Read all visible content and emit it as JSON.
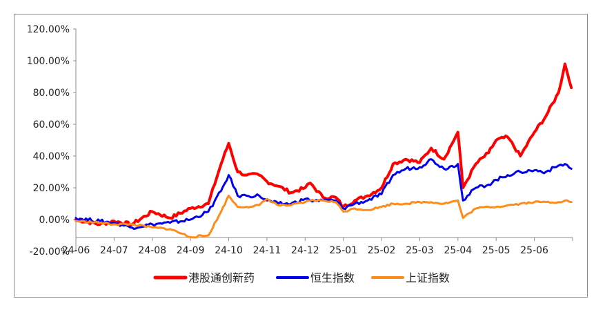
{
  "chart_data": {
    "type": "line",
    "title": "",
    "xlabel": "",
    "ylabel": "",
    "x_tick_labels": [
      "24-06",
      "24-07",
      "24-08",
      "24-09",
      "24-10",
      "24-11",
      "24-12",
      "25-01",
      "25-02",
      "25-03",
      "25-04",
      "25-05",
      "25-06"
    ],
    "y_tick_labels": [
      "-20.00%",
      "0.00%",
      "20.00%",
      "40.00%",
      "60.00%",
      "80.00%",
      "100.00%",
      "120.00%"
    ],
    "ylim": [
      -20,
      120
    ],
    "y_unit": "%",
    "grid": false,
    "legend_position": "bottom",
    "series": [
      {
        "name": "港股通创新药",
        "color": "#ff0000",
        "points": [
          [
            "24-06",
            0
          ],
          [
            "24-06-20",
            -3
          ],
          [
            "24-07",
            -1
          ],
          [
            "24-07-15",
            -3
          ],
          [
            "24-08",
            5
          ],
          [
            "24-08-15",
            1
          ],
          [
            "24-09",
            7
          ],
          [
            "24-09-15",
            10
          ],
          [
            "24-09-25",
            35
          ],
          [
            "24-10",
            48
          ],
          [
            "24-10-08",
            30
          ],
          [
            "24-10-15",
            28
          ],
          [
            "24-10-25",
            28
          ],
          [
            "24-11",
            24
          ],
          [
            "24-11-10",
            21
          ],
          [
            "24-11-20",
            17
          ],
          [
            "24-12",
            20
          ],
          [
            "24-12-05",
            23
          ],
          [
            "24-12-15",
            14
          ],
          [
            "24-12-25",
            14
          ],
          [
            "25-01",
            8
          ],
          [
            "25-01-10",
            12
          ],
          [
            "25-01-20",
            15
          ],
          [
            "25-02",
            20
          ],
          [
            "25-02-10",
            35
          ],
          [
            "25-02-20",
            38
          ],
          [
            "25-03",
            36
          ],
          [
            "25-03-10",
            45
          ],
          [
            "25-03-20",
            38
          ],
          [
            "25-04",
            55
          ],
          [
            "25-04-05",
            20
          ],
          [
            "25-04-15",
            35
          ],
          [
            "25-04-25",
            42
          ],
          [
            "25-05",
            50
          ],
          [
            "25-05-10",
            52
          ],
          [
            "25-05-20",
            40
          ],
          [
            "25-06",
            55
          ],
          [
            "25-06-10",
            65
          ],
          [
            "25-06-20",
            80
          ],
          [
            "25-06-25",
            98
          ],
          [
            "25-06-30",
            83
          ]
        ]
      },
      {
        "name": "恒生指数",
        "color": "#0000ee",
        "points": [
          [
            "24-06",
            1
          ],
          [
            "24-06-20",
            -1
          ],
          [
            "24-07",
            -2
          ],
          [
            "24-07-15",
            -5
          ],
          [
            "24-08",
            -3
          ],
          [
            "24-08-15",
            -2
          ],
          [
            "24-09",
            0
          ],
          [
            "24-09-15",
            5
          ],
          [
            "24-09-25",
            18
          ],
          [
            "24-10",
            28
          ],
          [
            "24-10-08",
            15
          ],
          [
            "24-10-15",
            15
          ],
          [
            "24-10-25",
            15
          ],
          [
            "24-11",
            12
          ],
          [
            "24-11-10",
            10
          ],
          [
            "24-11-20",
            10
          ],
          [
            "24-12",
            13
          ],
          [
            "24-12-05",
            12
          ],
          [
            "24-12-15",
            12
          ],
          [
            "24-12-25",
            12
          ],
          [
            "25-01",
            7
          ],
          [
            "25-01-10",
            10
          ],
          [
            "25-01-20",
            12
          ],
          [
            "25-02",
            16
          ],
          [
            "25-02-10",
            28
          ],
          [
            "25-02-20",
            32
          ],
          [
            "25-03",
            33
          ],
          [
            "25-03-10",
            38
          ],
          [
            "25-03-20",
            32
          ],
          [
            "25-04",
            35
          ],
          [
            "25-04-05",
            12
          ],
          [
            "25-04-15",
            20
          ],
          [
            "25-04-25",
            22
          ],
          [
            "25-05",
            25
          ],
          [
            "25-05-10",
            28
          ],
          [
            "25-05-20",
            30
          ],
          [
            "25-06",
            31
          ],
          [
            "25-06-10",
            30
          ],
          [
            "25-06-20",
            34
          ],
          [
            "25-06-25",
            35
          ],
          [
            "25-06-30",
            32
          ]
        ]
      },
      {
        "name": "上证指数",
        "color": "#ff8c1a",
        "points": [
          [
            "24-06",
            -1
          ],
          [
            "24-06-20",
            -2
          ],
          [
            "24-07",
            -3
          ],
          [
            "24-07-15",
            -3
          ],
          [
            "24-08",
            -5
          ],
          [
            "24-08-15",
            -6
          ],
          [
            "24-09",
            -11
          ],
          [
            "24-09-15",
            -10
          ],
          [
            "24-09-25",
            5
          ],
          [
            "24-10",
            15
          ],
          [
            "24-10-08",
            8
          ],
          [
            "24-10-15",
            8
          ],
          [
            "24-10-25",
            9
          ],
          [
            "24-11",
            13
          ],
          [
            "24-11-10",
            9
          ],
          [
            "24-11-20",
            9
          ],
          [
            "24-12",
            11
          ],
          [
            "24-12-05",
            12
          ],
          [
            "24-12-15",
            12
          ],
          [
            "24-12-25",
            11
          ],
          [
            "25-01",
            5
          ],
          [
            "25-01-10",
            7
          ],
          [
            "25-01-20",
            6
          ],
          [
            "25-02",
            8
          ],
          [
            "25-02-10",
            10
          ],
          [
            "25-02-20",
            10
          ],
          [
            "25-03",
            11
          ],
          [
            "25-03-10",
            11
          ],
          [
            "25-03-20",
            10
          ],
          [
            "25-04",
            12
          ],
          [
            "25-04-05",
            1
          ],
          [
            "25-04-15",
            7
          ],
          [
            "25-04-25",
            8
          ],
          [
            "25-05",
            8
          ],
          [
            "25-05-10",
            9
          ],
          [
            "25-05-20",
            10
          ],
          [
            "25-06",
            11
          ],
          [
            "25-06-10",
            11
          ],
          [
            "25-06-20",
            11
          ],
          [
            "25-06-25",
            12
          ],
          [
            "25-06-30",
            11
          ]
        ]
      }
    ]
  }
}
